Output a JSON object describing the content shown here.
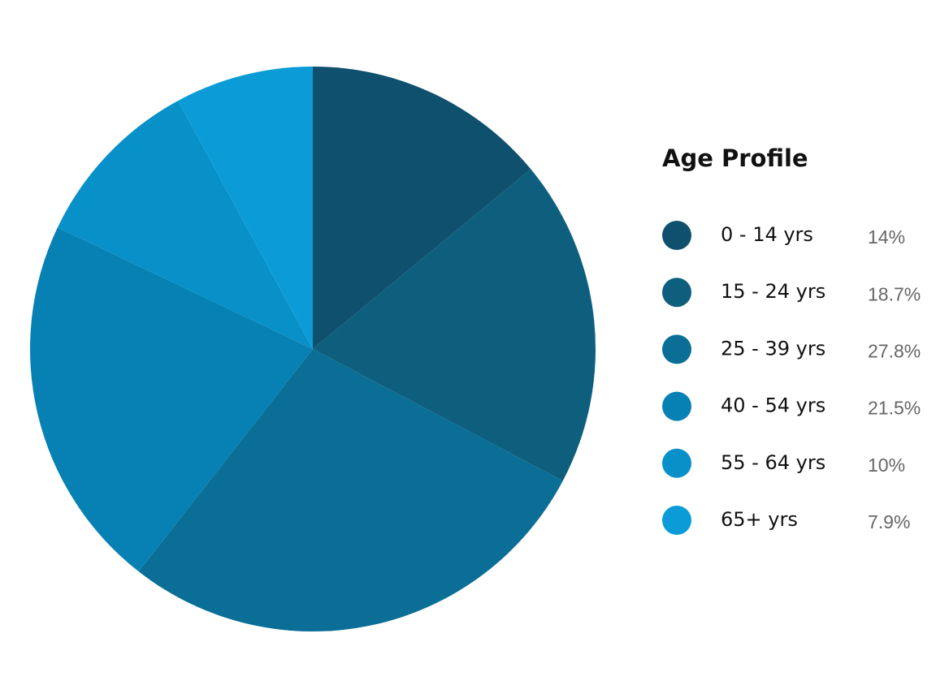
{
  "chart_data": {
    "type": "pie",
    "title": "Age Profile",
    "categories": [
      "0 - 14 yrs",
      "15 - 24 yrs",
      "25 - 39 yrs",
      "40 - 54 yrs",
      "55 - 64 yrs",
      "65+ yrs"
    ],
    "values": [
      14,
      18.7,
      27.8,
      21.5,
      10,
      7.9
    ],
    "value_labels": [
      "14%",
      "18.7%",
      "27.8%",
      "21.5%",
      "10%",
      "7.9%"
    ],
    "colors": [
      "#0f506e",
      "#0e5f7e",
      "#0a6e96",
      "#0781b4",
      "#0890c8",
      "#0b9cd8"
    ],
    "legend": "right"
  }
}
